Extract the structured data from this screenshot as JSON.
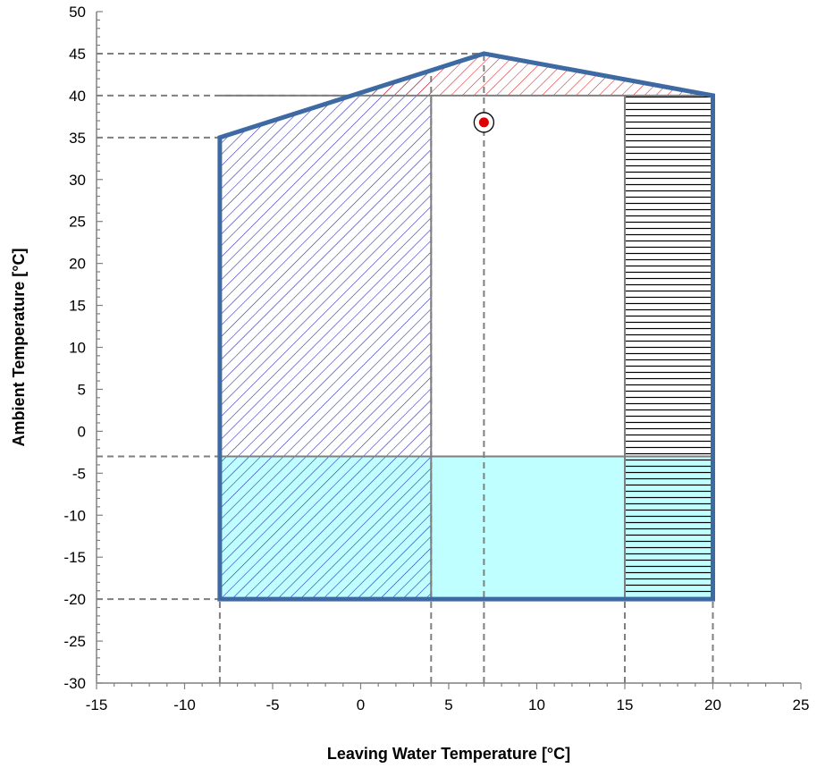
{
  "chart_data": {
    "type": "area",
    "xlabel": "Leaving Water Temperature [°C]",
    "ylabel": "Ambient Temperature [°C]",
    "xlim": [
      -15,
      25
    ],
    "ylim": [
      -30,
      50
    ],
    "x_ticks": [
      -15,
      -10,
      -5,
      0,
      5,
      10,
      15,
      20,
      25
    ],
    "y_ticks": [
      -30,
      -25,
      -20,
      -15,
      -10,
      -5,
      0,
      5,
      10,
      15,
      20,
      25,
      30,
      35,
      40,
      45,
      50
    ],
    "x_tick_labels": [
      "-15",
      "-10",
      "-5",
      "0",
      "5",
      "10",
      "15",
      "20",
      "25"
    ],
    "y_tick_labels": [
      "-30",
      "-25",
      "-20",
      "-15",
      "-10",
      "-5",
      "0",
      "5",
      "10",
      "15",
      "20",
      "25",
      "30",
      "35",
      "40",
      "45",
      "50"
    ],
    "envelope": [
      [
        -8,
        -20
      ],
      [
        -8,
        35
      ],
      [
        4,
        43
      ],
      [
        7,
        45
      ],
      [
        20,
        40
      ],
      [
        20,
        -20
      ]
    ],
    "regions": [
      {
        "id": "low-ambient",
        "fill": "#c0ffff",
        "x": [
          -8,
          20
        ],
        "y": [
          -20,
          -3
        ]
      },
      {
        "id": "blue-hatch",
        "pattern": "diagonal",
        "color": "#1f1fb4",
        "polygon": [
          [
            -8,
            -20
          ],
          [
            -8,
            35
          ],
          [
            4,
            43
          ],
          [
            4,
            -20
          ]
        ]
      },
      {
        "id": "red-hatch",
        "pattern": "diagonal",
        "color": "#e02020",
        "polygon": [
          [
            -0.25,
            40
          ],
          [
            4,
            43
          ],
          [
            7,
            45
          ],
          [
            20,
            40
          ]
        ]
      },
      {
        "id": "black-hatch",
        "pattern": "horizontal",
        "color": "#000000",
        "x": [
          15,
          20
        ],
        "y": [
          -20,
          40
        ]
      }
    ],
    "inner_lines": {
      "x": [
        4,
        15
      ],
      "y": [
        -3,
        40
      ]
    },
    "reference_lines": {
      "x": [
        {
          "x": -8,
          "y_top": -20
        },
        {
          "x": 4,
          "y_top": 43
        },
        {
          "x": 7,
          "y_top": 45
        },
        {
          "x": 15,
          "y_top": 40
        },
        {
          "x": 20,
          "y_top": 40
        }
      ],
      "y": [
        {
          "y": 45,
          "x_end": 7
        },
        {
          "y": 40,
          "x_end": -0.25
        },
        {
          "y": 35,
          "x_end": -8
        },
        {
          "y": -3,
          "x_end": -8
        },
        {
          "y": -20,
          "x_end": -8
        }
      ]
    },
    "design_point": {
      "x": 7,
      "y": 36.8,
      "color": "#e00000"
    },
    "colors": {
      "envelope": "#3d6aa3",
      "grid_line": "#7f7f7f",
      "axis": "#808080"
    },
    "grid": false,
    "legend": "none"
  }
}
